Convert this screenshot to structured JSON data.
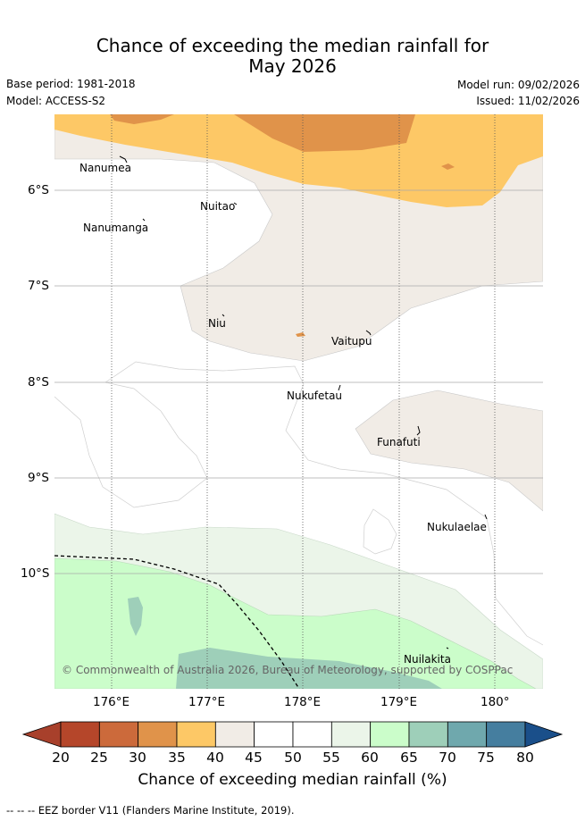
{
  "title": {
    "line1": "Chance of exceeding the median rainfall for",
    "line2": "May 2026"
  },
  "meta": {
    "base_period": "Base period: 1981-2018",
    "model": "Model: ACCESS-S2",
    "model_run": "Model run: 09/02/2026",
    "issued": "Issued: 11/02/2026"
  },
  "axes": {
    "lat_labels": [
      "6°S",
      "7°S",
      "8°S",
      "9°S",
      "10°S"
    ],
    "lon_labels": [
      "176°E",
      "177°E",
      "178°E",
      "179°E",
      "180°"
    ]
  },
  "places": {
    "nanumea": "Nanumea",
    "nuitao": "Nuitao",
    "nanumanga": "Nanumanga",
    "niu": "Niu",
    "vaitupu": "Vaitupu",
    "nukufetau": "Nukufetau",
    "funafuti": "Funafuti",
    "nukulaelae": "Nukulaelae",
    "nuilakita": "Nuilakita"
  },
  "copyright": "© Commonwealth of Australia 2026, Bureau of Meteorology, supported by COSPPac",
  "colorbar": {
    "ticks": [
      "20",
      "25",
      "30",
      "35",
      "40",
      "45",
      "50",
      "55",
      "60",
      "65",
      "70",
      "75",
      "80"
    ],
    "colors": [
      "#b5462a",
      "#cc6a3b",
      "#e0934a",
      "#fdc866",
      "#f1ece6",
      "#ffffff",
      "#ffffff",
      "#ebf5e9",
      "#cbfdca",
      "#9ecfb9",
      "#6fa8ad",
      "#457e9f"
    ],
    "under_color": "#a8402b",
    "over_color": "#1a4f8a",
    "label": "Chance of exceeding median rainfall (%)"
  },
  "footnote": "-- -- -- EEZ border V11 (Flanders Marine Institute, 2019)."
}
